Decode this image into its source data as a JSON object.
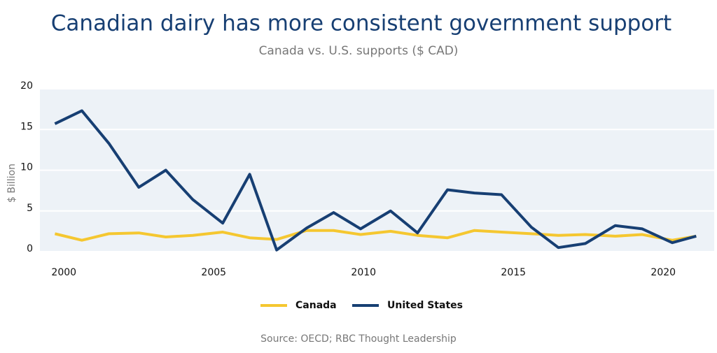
{
  "chart_data": {
    "type": "line",
    "title": "Canadian dairy has more consistent government support",
    "subtitle": "Canada vs. U.S. supports ($ CAD)",
    "y_label": "$ Billion",
    "source": "Source: OECD; RBC Thought Leadership",
    "x": [
      1999.7,
      2000.6,
      2001.5,
      2002.5,
      2003.4,
      2004.3,
      2005.3,
      2006.2,
      2007.1,
      2008.1,
      2009.0,
      2009.9,
      2010.9,
      2011.8,
      2012.8,
      2013.7,
      2014.6,
      2015.6,
      2016.5,
      2017.4,
      2018.4,
      2019.3,
      2020.3,
      2021.1
    ],
    "series": [
      {
        "name": "Canada",
        "color": "#f5c730",
        "values": [
          2.2,
          1.4,
          2.2,
          2.3,
          1.8,
          2.0,
          2.4,
          1.7,
          1.5,
          2.6,
          2.6,
          2.1,
          2.5,
          2.0,
          1.7,
          2.6,
          2.4,
          2.2,
          2.0,
          2.1,
          1.9,
          2.1,
          1.4,
          1.9
        ]
      },
      {
        "name": "United States",
        "color": "#173f73",
        "values": [
          15.7,
          17.3,
          13.3,
          7.9,
          10.0,
          6.4,
          3.5,
          9.5,
          0.2,
          2.9,
          4.8,
          2.8,
          5.0,
          2.3,
          7.6,
          7.2,
          7.0,
          3.0,
          0.5,
          1.0,
          3.2,
          2.8,
          1.1,
          1.9
        ]
      }
    ],
    "xlim": [
      1999.2,
      2021.7
    ],
    "xticks": [
      2000,
      2005,
      2010,
      2015,
      2020
    ],
    "ylim": [
      0,
      20
    ],
    "yticks": [
      0,
      5,
      10,
      15,
      20
    ],
    "grid": true
  }
}
